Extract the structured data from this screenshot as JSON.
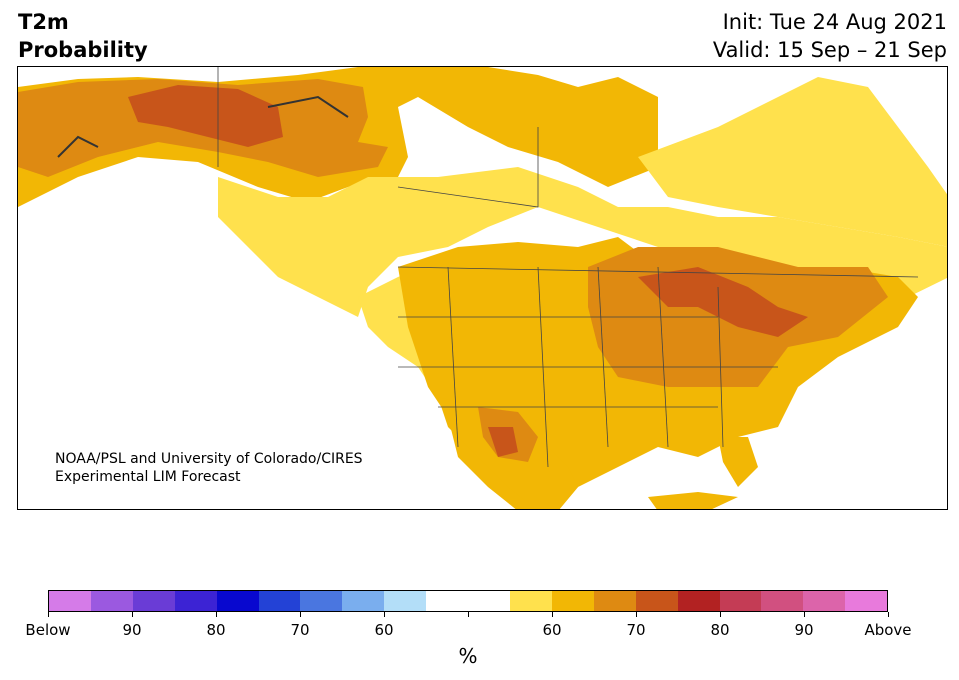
{
  "header": {
    "title_line1": "T2m",
    "title_line2": "Probability",
    "init": "Init: Tue 24 Aug 2021",
    "valid": "Valid: 15 Sep – 21 Sep"
  },
  "map": {
    "credit_line1": "NOAA/PSL and University of Colorado/CIRES",
    "credit_line2": "Experimental LIM Forecast",
    "colors": {
      "land_neutral": "#ffffff",
      "above_55": "#ffe14d",
      "above_60": "#f2b705",
      "above_65": "#de8a12",
      "above_70": "#c8551a",
      "above_75": "#b22222",
      "border": "#444444"
    }
  },
  "colorbar": {
    "colors": [
      "#d57be8",
      "#9b59e0",
      "#6a3cd6",
      "#3c23d4",
      "#0808cf",
      "#2342d6",
      "#4a76e0",
      "#7aaeee",
      "#b3def8",
      "#ffffff",
      "#ffffff",
      "#ffe14d",
      "#f2b705",
      "#de8a12",
      "#c8551a",
      "#b22222",
      "#c43c55",
      "#d15080",
      "#dc64aa",
      "#e87adc"
    ],
    "tick_labels": [
      "Below",
      "90",
      "80",
      "70",
      "60",
      "",
      "60",
      "70",
      "80",
      "90",
      "Above"
    ],
    "unit_label": "%"
  }
}
